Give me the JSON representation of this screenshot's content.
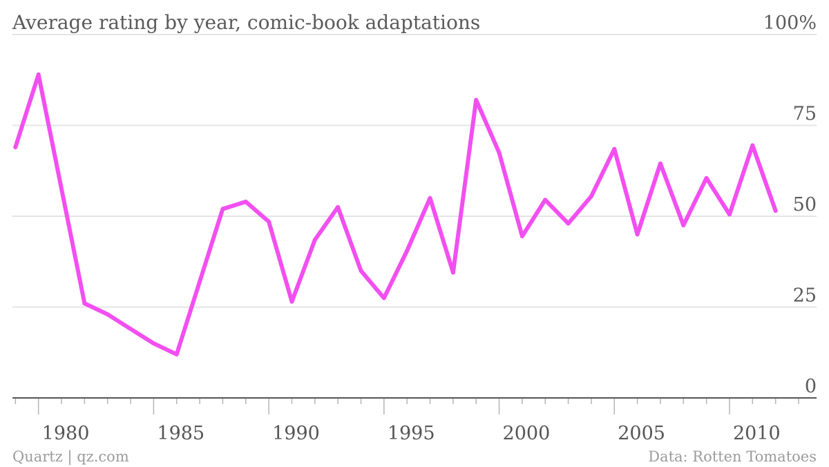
{
  "chart_data": {
    "type": "line",
    "title": "Average rating by year, comic-book adaptations",
    "y_unit_label": "100%",
    "ylim": [
      0,
      100
    ],
    "y_ticks": [
      0,
      25,
      50,
      75
    ],
    "xlim": [
      1978.9,
      2013
    ],
    "x_ticks": [
      1980,
      1985,
      1990,
      1995,
      2000,
      2005,
      2010
    ],
    "grid": true,
    "series": [
      {
        "color": "#f24ff0",
        "points": [
          [
            1979,
            69
          ],
          [
            1980,
            89
          ],
          [
            1982,
            26
          ],
          [
            1983,
            23
          ],
          [
            1984,
            19
          ],
          [
            1985,
            15
          ],
          [
            1986,
            12
          ],
          [
            1988,
            52
          ],
          [
            1989,
            54
          ],
          [
            1990,
            48.5
          ],
          [
            1991,
            26.5
          ],
          [
            1992,
            43.5
          ],
          [
            1993,
            52.5
          ],
          [
            1994,
            35
          ],
          [
            1995,
            27.5
          ],
          [
            1996,
            40.5
          ],
          [
            1997,
            55
          ],
          [
            1998,
            34.5
          ],
          [
            1999,
            82
          ],
          [
            2000,
            67.5
          ],
          [
            2001,
            44.5
          ],
          [
            2002,
            54.5
          ],
          [
            2003,
            48
          ],
          [
            2004,
            55.5
          ],
          [
            2005,
            68.5
          ],
          [
            2006,
            45
          ],
          [
            2007,
            64.5
          ],
          [
            2008,
            47.5
          ],
          [
            2009,
            60.5
          ],
          [
            2010,
            50.5
          ],
          [
            2011,
            69.5
          ],
          [
            2012,
            51.5
          ]
        ]
      }
    ]
  },
  "footer": {
    "source_left": "Quartz | qz.com",
    "source_right": "Data: Rotten Tomatoes"
  }
}
